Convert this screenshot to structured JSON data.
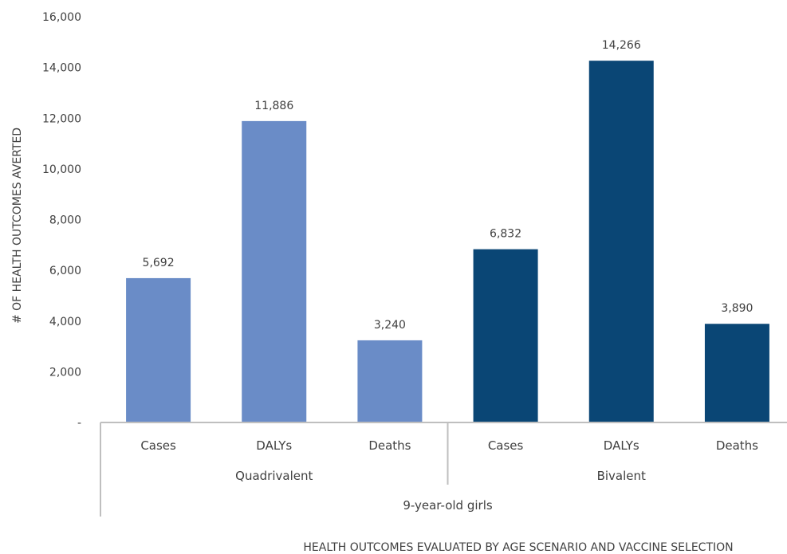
{
  "chart_data": {
    "type": "bar",
    "title": "",
    "xlabel": "HEALTH OUTCOMES EVALUATED BY AGE SCENARIO AND VACCINE SELECTION",
    "ylabel": "# OF HEALTH OUTCOMES AVERTED",
    "ylim": [
      0,
      16000
    ],
    "yticks": [
      0,
      2000,
      4000,
      6000,
      8000,
      10000,
      12000,
      14000,
      16000
    ],
    "ytick_labels": [
      "-",
      "2,000",
      "4,000",
      "6,000",
      "8,000",
      "10,000",
      "12,000",
      "14,000",
      "16,000"
    ],
    "grid": false,
    "legend": "none",
    "category_levels": {
      "outcomes": [
        "Cases",
        "DALYs",
        "Deaths",
        "Cases",
        "DALYs",
        "Deaths"
      ],
      "vaccines": [
        "Quadrivalent",
        "Bivalent"
      ],
      "age_scenario": "9-year-old girls"
    },
    "bars": [
      {
        "vaccine": "Quadrivalent",
        "outcome": "Cases",
        "value": 5692,
        "label": "5,692",
        "color": "#6a8cc7"
      },
      {
        "vaccine": "Quadrivalent",
        "outcome": "DALYs",
        "value": 11886,
        "label": "11,886",
        "color": "#6a8cc7"
      },
      {
        "vaccine": "Quadrivalent",
        "outcome": "Deaths",
        "value": 3240,
        "label": "3,240",
        "color": "#6a8cc7"
      },
      {
        "vaccine": "Bivalent",
        "outcome": "Cases",
        "value": 6832,
        "label": "6,832",
        "color": "#0a4675"
      },
      {
        "vaccine": "Bivalent",
        "outcome": "DALYs",
        "value": 14266,
        "label": "14,266",
        "color": "#0a4675"
      },
      {
        "vaccine": "Bivalent",
        "outcome": "Deaths",
        "value": 3890,
        "label": "3,890",
        "color": "#0a4675"
      }
    ]
  }
}
